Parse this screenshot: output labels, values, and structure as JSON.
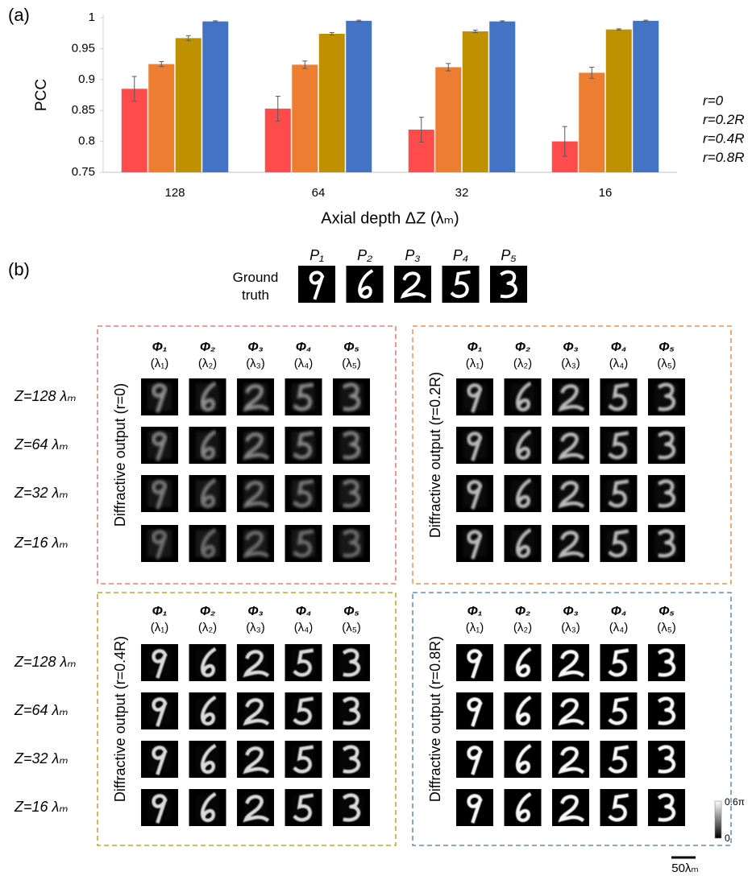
{
  "chart_data": {
    "type": "bar",
    "panel_label": "(a)",
    "ylabel": "PCC",
    "xlabel": "Axial depth ΔZ (λₘ)",
    "categories": [
      "128",
      "64",
      "32",
      "16"
    ],
    "series": [
      {
        "name": "r=0",
        "color": "#ff4b4b",
        "values": [
          0.885,
          0.853,
          0.819,
          0.8
        ],
        "errors": [
          0.02,
          0.02,
          0.02,
          0.024
        ]
      },
      {
        "name": "r=0.2R",
        "color": "#ed7d31",
        "values": [
          0.925,
          0.924,
          0.92,
          0.911
        ],
        "errors": [
          0.004,
          0.006,
          0.006,
          0.009
        ]
      },
      {
        "name": "r=0.4R",
        "color": "#bf9000",
        "values": [
          0.967,
          0.974,
          0.978,
          0.981
        ],
        "errors": [
          0.004,
          0.002,
          0.002,
          0.001
        ]
      },
      {
        "name": "r=0.8R",
        "color": "#4472c4",
        "values": [
          0.994,
          0.995,
          0.994,
          0.995
        ],
        "errors": [
          0.001,
          0.001,
          0.001,
          0.001
        ]
      }
    ],
    "ylim": [
      0.75,
      1
    ],
    "yticks": [
      0.75,
      0.8,
      0.85,
      0.9,
      0.95,
      1
    ],
    "grid": false,
    "legend": "right"
  },
  "panel_b": {
    "label": "(b)",
    "ground_truth": {
      "label": "Ground truth",
      "columns": [
        "P₁",
        "P₂",
        "P₃",
        "P₄",
        "P₅"
      ]
    },
    "column_headers": [
      "Φ₁",
      "Φ₂",
      "Φ₃",
      "Φ₄",
      "Φ₅"
    ],
    "wavelengths": [
      "(λ₁)",
      "(λ₂)",
      "(λ₃)",
      "(λ₄)",
      "(λ₅)"
    ],
    "row_labels": [
      "Z=128 λₘ",
      "Z=64 λₘ",
      "Z=32 λₘ",
      "Z=16 λₘ"
    ],
    "panels": [
      {
        "label": "Diffractive output (r=0)",
        "color": "#f05a5a"
      },
      {
        "label": "Diffractive output (r=0.2R)",
        "color": "#ed7d31"
      },
      {
        "label": "Diffractive output (r=0.4R)",
        "color": "#bf9000"
      },
      {
        "label": "Diffractive output (r=0.8R)",
        "color": "#4472c4"
      }
    ],
    "colorbar": {
      "max": "0.6π",
      "min": "0"
    },
    "scale_bar": "50λₘ"
  }
}
